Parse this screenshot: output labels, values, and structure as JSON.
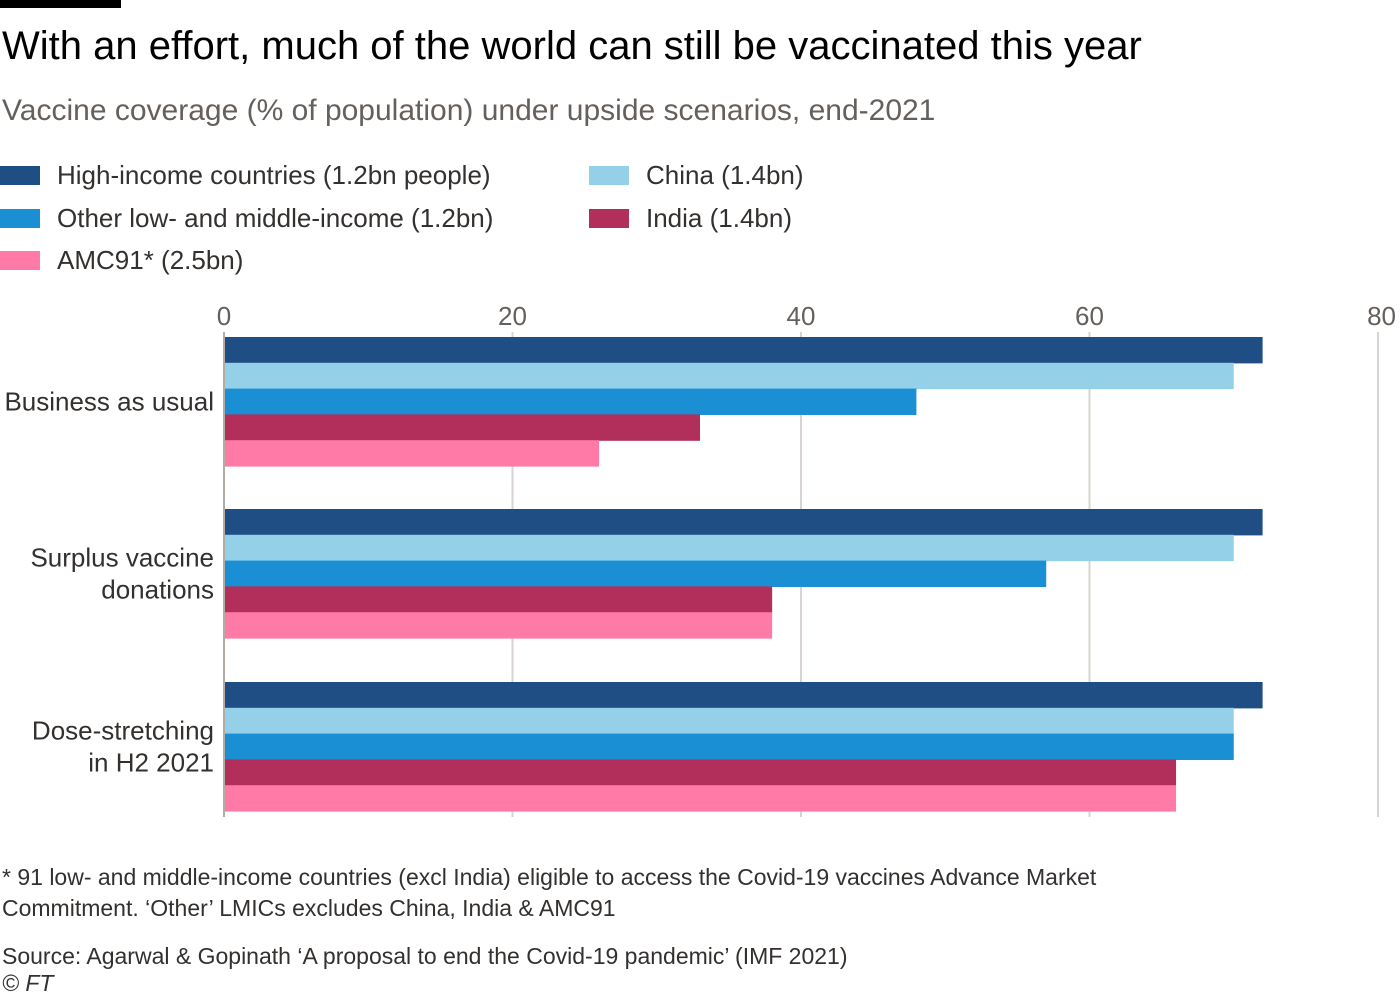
{
  "header": {
    "title": "With an effort, much of the world can still be vaccinated this year",
    "subtitle": "Vaccine coverage (% of population) under upside scenarios, end-2021"
  },
  "legend": [
    {
      "label": "High-income countries (1.2bn people)",
      "color": "#1f4e85"
    },
    {
      "label": "Other low- and middle-income (1.2bn)",
      "color": "#1b8fd3"
    },
    {
      "label": "AMC91* (2.5bn)",
      "color": "#ff7aa6"
    },
    {
      "label": "China (1.4bn)",
      "color": "#94d1e8"
    },
    {
      "label": "India (1.4bn)",
      "color": "#b12f5a"
    }
  ],
  "chart_data": {
    "type": "bar",
    "orientation": "horizontal",
    "xlim": [
      0,
      80
    ],
    "x_ticks": [
      "0",
      "20",
      "40",
      "60",
      "80"
    ],
    "grid": true,
    "legend_position": "top-left",
    "categories": [
      [
        "Business as usual"
      ],
      [
        "Surplus vaccine",
        "donations"
      ],
      [
        "Dose-stretching",
        "in H2 2021"
      ]
    ],
    "series": [
      {
        "name": "High-income countries (1.2bn people)",
        "color": "#1f4e85",
        "values": [
          72,
          72,
          72
        ]
      },
      {
        "name": "China (1.4bn)",
        "color": "#94d1e8",
        "values": [
          70,
          70,
          70
        ]
      },
      {
        "name": "Other low- and middle-income (1.2bn)",
        "color": "#1b8fd3",
        "values": [
          48,
          57,
          70
        ]
      },
      {
        "name": "India (1.4bn)",
        "color": "#b12f5a",
        "values": [
          33,
          38,
          66
        ]
      },
      {
        "name": "AMC91* (2.5bn)",
        "color": "#ff7aa6",
        "values": [
          26,
          38,
          66
        ]
      }
    ]
  },
  "footnote": {
    "line1": "* 91 low- and middle-income countries (excl India) eligible to access the Covid-19 vaccines Advance Market",
    "line2": "Commitment. ‘Other’ LMICs excludes China, India & AMC91"
  },
  "source": {
    "text": "Source: Agarwal & Gopinath ‘A proposal to end the Covid-19 pandemic’ (IMF 2021)",
    "copyright": "© FT"
  }
}
